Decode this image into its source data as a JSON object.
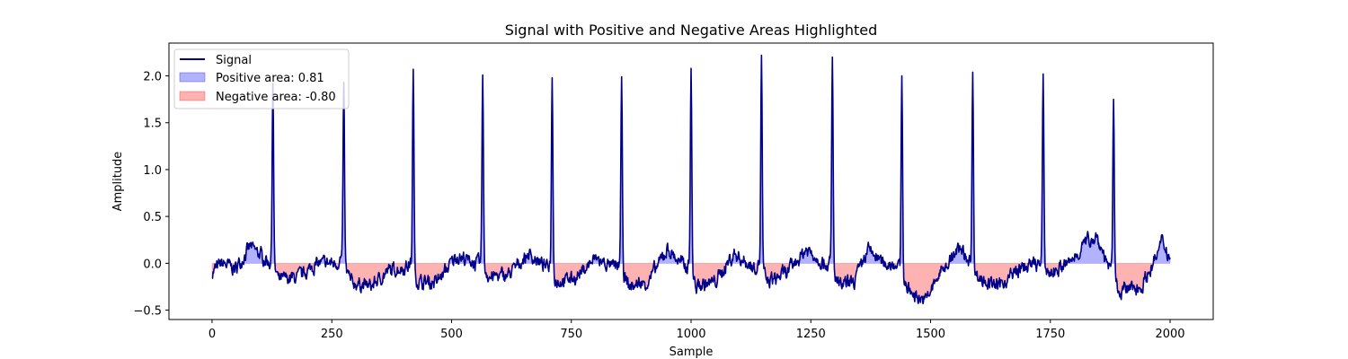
{
  "chart_data": {
    "type": "area",
    "title": "Signal with Positive and Negative Areas Highlighted",
    "xlabel": "Sample",
    "ylabel": "Amplitude",
    "xlim": [
      -90,
      2090
    ],
    "ylim": [
      -0.6,
      2.35
    ],
    "xticks": [
      0,
      250,
      500,
      750,
      1000,
      1250,
      1500,
      1750,
      2000
    ],
    "yticks": [
      -0.5,
      0.0,
      0.5,
      1.0,
      1.5,
      2.0
    ],
    "grid": false,
    "legend_position": "top-left",
    "series": [
      {
        "name": "Signal",
        "kind": "line"
      },
      {
        "name": "Positive area: 0.81",
        "kind": "fill"
      },
      {
        "name": "Negative area: -0.80",
        "kind": "fill"
      }
    ],
    "colors": {
      "signal": "#00008b",
      "positive": "#0000ff",
      "negative": "#ff0000"
    },
    "peaks": [
      {
        "x": 127,
        "y": 1.92
      },
      {
        "x": 275,
        "y": 1.93
      },
      {
        "x": 420,
        "y": 2.07
      },
      {
        "x": 565,
        "y": 2.01
      },
      {
        "x": 710,
        "y": 1.98
      },
      {
        "x": 855,
        "y": 1.99
      },
      {
        "x": 1000,
        "y": 2.08
      },
      {
        "x": 1147,
        "y": 2.22
      },
      {
        "x": 1295,
        "y": 2.2
      },
      {
        "x": 1440,
        "y": 2.0
      },
      {
        "x": 1588,
        "y": 2.04
      },
      {
        "x": 1735,
        "y": 2.02
      },
      {
        "x": 1882,
        "y": 1.75
      }
    ],
    "baseline_trend": [
      [
        0,
        -0.1
      ],
      [
        20,
        0.0
      ],
      [
        50,
        -0.05
      ],
      [
        80,
        0.18
      ],
      [
        110,
        0.05
      ],
      [
        125,
        0.0
      ],
      [
        140,
        -0.18
      ],
      [
        180,
        -0.15
      ],
      [
        220,
        0.0
      ],
      [
        260,
        0.0
      ],
      [
        270,
        0.05
      ],
      [
        290,
        -0.2
      ],
      [
        330,
        -0.25
      ],
      [
        370,
        -0.08
      ],
      [
        400,
        -0.05
      ],
      [
        415,
        0.0
      ],
      [
        430,
        -0.2
      ],
      [
        470,
        -0.2
      ],
      [
        510,
        0.08
      ],
      [
        550,
        0.0
      ],
      [
        560,
        0.0
      ],
      [
        580,
        -0.15
      ],
      [
        620,
        -0.12
      ],
      [
        660,
        0.1
      ],
      [
        700,
        -0.05
      ],
      [
        705,
        0.0
      ],
      [
        720,
        -0.2
      ],
      [
        760,
        -0.15
      ],
      [
        800,
        0.05
      ],
      [
        840,
        -0.05
      ],
      [
        850,
        0.0
      ],
      [
        870,
        -0.25
      ],
      [
        910,
        -0.2
      ],
      [
        950,
        0.15
      ],
      [
        990,
        -0.05
      ],
      [
        995,
        0.0
      ],
      [
        1010,
        -0.25
      ],
      [
        1050,
        -0.2
      ],
      [
        1090,
        0.1
      ],
      [
        1130,
        -0.05
      ],
      [
        1140,
        0.0
      ],
      [
        1160,
        -0.2
      ],
      [
        1200,
        -0.1
      ],
      [
        1240,
        0.15
      ],
      [
        1280,
        0.0
      ],
      [
        1290,
        0.0
      ],
      [
        1310,
        -0.25
      ],
      [
        1340,
        -0.2
      ],
      [
        1370,
        0.15
      ],
      [
        1400,
        0.0
      ],
      [
        1430,
        0.0
      ],
      [
        1455,
        -0.3
      ],
      [
        1490,
        -0.4
      ],
      [
        1520,
        -0.1
      ],
      [
        1560,
        0.15
      ],
      [
        1580,
        0.05
      ],
      [
        1600,
        -0.15
      ],
      [
        1640,
        -0.25
      ],
      [
        1690,
        -0.05
      ],
      [
        1725,
        0.0
      ],
      [
        1750,
        -0.1
      ],
      [
        1790,
        0.0
      ],
      [
        1820,
        0.2
      ],
      [
        1845,
        0.3
      ],
      [
        1870,
        0.0
      ],
      [
        1895,
        -0.3
      ],
      [
        1940,
        -0.25
      ],
      [
        1970,
        0.05
      ],
      [
        1985,
        0.25
      ],
      [
        2000,
        0.05
      ]
    ]
  }
}
